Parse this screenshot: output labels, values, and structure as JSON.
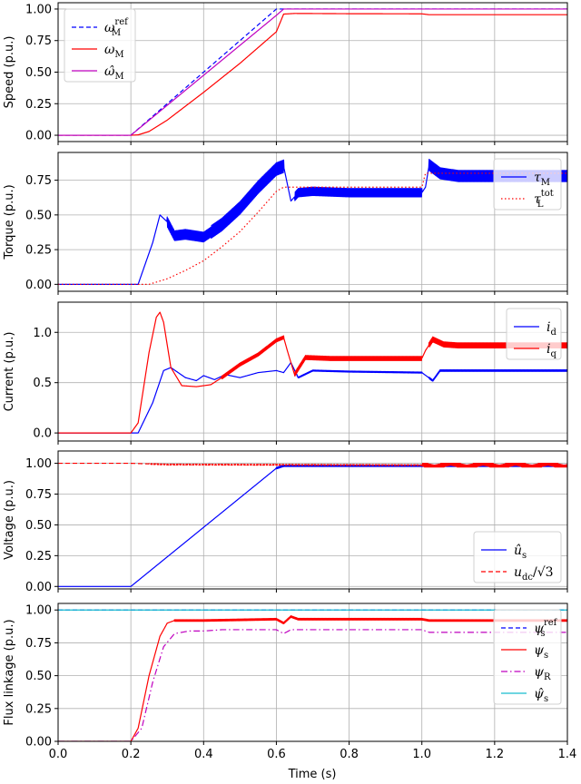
{
  "chart_data": [
    {
      "type": "line",
      "ylabel": "Speed (p.u.)",
      "xlim": [
        0,
        1.4
      ],
      "ylim": [
        -0.05,
        1.05
      ],
      "yticks": [
        "0.00",
        "0.25",
        "0.50",
        "0.75",
        "1.00"
      ],
      "ytick_values": [
        0,
        0.25,
        0.5,
        0.75,
        1.0
      ],
      "grid": true,
      "legend_position": "upper-left",
      "series": [
        {
          "name": "ω_M^ref",
          "color": "#0000ff",
          "dash": "dashed",
          "x": [
            0,
            0.2,
            0.6,
            1.4
          ],
          "y": [
            0,
            0,
            1.0,
            1.0
          ]
        },
        {
          "name": "ω_M",
          "color": "#ff0000",
          "dash": "solid",
          "x": [
            0,
            0.2,
            0.22,
            0.25,
            0.3,
            0.4,
            0.5,
            0.6,
            0.62,
            0.65,
            0.8,
            1.0,
            1.02,
            1.4
          ],
          "y": [
            0,
            0,
            0.003,
            0.03,
            0.12,
            0.34,
            0.57,
            0.82,
            0.96,
            0.965,
            0.963,
            0.962,
            0.955,
            0.955
          ]
        },
        {
          "name": "ω̂_M",
          "color": "#bf00bf",
          "dash": "solid",
          "x": [
            0,
            0.2,
            0.6,
            0.62,
            1.4
          ],
          "y": [
            0,
            0,
            0.95,
            1.0,
            1.0
          ]
        }
      ]
    },
    {
      "type": "line",
      "ylabel": "Torque (p.u.)",
      "xlim": [
        0,
        1.4
      ],
      "ylim": [
        -0.05,
        0.95
      ],
      "yticks": [
        "0.00",
        "0.25",
        "0.50",
        "0.75"
      ],
      "ytick_values": [
        0,
        0.25,
        0.5,
        0.75
      ],
      "grid": true,
      "legend_position": "upper-right",
      "series": [
        {
          "name": "τ_M",
          "color": "#0000ff",
          "dash": "solid",
          "ripple": [
            [
              0.3,
              0.42,
              0.07
            ],
            [
              0.42,
              0.62,
              0.09
            ],
            [
              0.65,
              1.0,
              0.06
            ],
            [
              1.02,
              1.4,
              0.08
            ]
          ],
          "x": [
            0,
            0.22,
            0.26,
            0.28,
            0.3,
            0.32,
            0.35,
            0.4,
            0.45,
            0.5,
            0.55,
            0.6,
            0.62,
            0.64,
            0.66,
            0.7,
            0.8,
            1.0,
            1.01,
            1.02,
            1.05,
            1.1,
            1.4
          ],
          "y": [
            0,
            0,
            0.3,
            0.5,
            0.45,
            0.35,
            0.36,
            0.34,
            0.43,
            0.55,
            0.7,
            0.83,
            0.85,
            0.6,
            0.66,
            0.67,
            0.66,
            0.66,
            0.7,
            0.86,
            0.8,
            0.78,
            0.78
          ]
        },
        {
          "name": "τ_L^tot",
          "color": "#ff0000",
          "dash": "dotted",
          "x": [
            0,
            0.25,
            0.3,
            0.35,
            0.4,
            0.45,
            0.5,
            0.55,
            0.6,
            0.62,
            0.65,
            0.8,
            1.0,
            1.01,
            1.4
          ],
          "y": [
            0,
            0,
            0.04,
            0.1,
            0.17,
            0.27,
            0.38,
            0.52,
            0.67,
            0.7,
            0.7,
            0.7,
            0.7,
            0.8,
            0.8
          ]
        }
      ]
    },
    {
      "type": "line",
      "ylabel": "Current (p.u.)",
      "xlim": [
        0,
        1.4
      ],
      "ylim": [
        -0.08,
        1.3
      ],
      "yticks": [
        "0.0",
        "0.5",
        "1.0"
      ],
      "ytick_values": [
        0,
        0.5,
        1.0
      ],
      "grid": true,
      "legend_position": "upper-right",
      "series": [
        {
          "name": "i_d",
          "color": "#0000ff",
          "dash": "solid",
          "ripple": [
            [
              0.65,
              1.0,
              0.01
            ],
            [
              1.02,
              1.4,
              0.015
            ]
          ],
          "x": [
            0,
            0.22,
            0.26,
            0.29,
            0.31,
            0.35,
            0.38,
            0.4,
            0.43,
            0.46,
            0.5,
            0.55,
            0.6,
            0.62,
            0.64,
            0.66,
            0.7,
            0.8,
            1.0,
            1.03,
            1.05,
            1.1,
            1.4
          ],
          "y": [
            0,
            0,
            0.3,
            0.62,
            0.65,
            0.55,
            0.52,
            0.57,
            0.53,
            0.58,
            0.55,
            0.6,
            0.62,
            0.6,
            0.7,
            0.55,
            0.62,
            0.61,
            0.6,
            0.52,
            0.62,
            0.62,
            0.62
          ]
        },
        {
          "name": "i_q",
          "color": "#ff0000",
          "dash": "solid",
          "ripple": [
            [
              0.45,
              0.62,
              0.03
            ],
            [
              0.65,
              1.0,
              0.04
            ],
            [
              1.02,
              1.4,
              0.05
            ]
          ],
          "x": [
            0,
            0.2,
            0.22,
            0.25,
            0.27,
            0.28,
            0.29,
            0.31,
            0.34,
            0.38,
            0.42,
            0.45,
            0.5,
            0.55,
            0.6,
            0.62,
            0.63,
            0.65,
            0.68,
            0.75,
            1.0,
            1.01,
            1.03,
            1.06,
            1.1,
            1.4
          ],
          "y": [
            0,
            0,
            0.1,
            0.8,
            1.15,
            1.2,
            1.1,
            0.65,
            0.47,
            0.46,
            0.48,
            0.55,
            0.68,
            0.78,
            0.92,
            0.95,
            0.82,
            0.58,
            0.75,
            0.74,
            0.74,
            0.82,
            0.93,
            0.88,
            0.87,
            0.87
          ]
        }
      ]
    },
    {
      "type": "line",
      "ylabel": "Voltage (p.u.)",
      "xlim": [
        0,
        1.4
      ],
      "ylim": [
        -0.02,
        1.1
      ],
      "yticks": [
        "0.00",
        "0.25",
        "0.50",
        "0.75",
        "1.00"
      ],
      "ytick_values": [
        0,
        0.25,
        0.5,
        0.75,
        1.0
      ],
      "grid": true,
      "legend_position": "lower-right",
      "series": [
        {
          "name": "û_s",
          "color": "#0000ff",
          "dash": "solid",
          "ripple": [
            [
              0.6,
              1.4,
              0.012
            ]
          ],
          "x": [
            0,
            0.2,
            0.6,
            0.62,
            1.4
          ],
          "y": [
            0,
            0,
            0.96,
            0.98,
            0.98
          ]
        },
        {
          "name": "u_dc/√3",
          "color": "#ff0000",
          "dash": "dashed",
          "ripple": [
            [
              0.25,
              1.0,
              0.006
            ],
            [
              1.0,
              1.4,
              0.03
            ]
          ],
          "x": [
            0,
            0.2,
            0.3,
            1.0,
            1.4
          ],
          "y": [
            1.0,
            1.0,
            0.99,
            0.985,
            0.985
          ]
        }
      ]
    },
    {
      "type": "line",
      "ylabel": "Flux linkage (p.u.)",
      "xlabel": "Time (s)",
      "xlim": [
        0,
        1.4
      ],
      "ylim": [
        0,
        1.05
      ],
      "yticks": [
        "0.00",
        "0.25",
        "0.50",
        "0.75",
        "1.00"
      ],
      "ytick_values": [
        0,
        0.25,
        0.5,
        0.75,
        1.0
      ],
      "xticks": [
        "0.0",
        "0.2",
        "0.4",
        "0.6",
        "0.8",
        "1.0",
        "1.2",
        "1.4"
      ],
      "xtick_values": [
        0,
        0.2,
        0.4,
        0.6,
        0.8,
        1.0,
        1.2,
        1.4
      ],
      "grid": true,
      "legend_position": "upper-right",
      "series": [
        {
          "name": "ψ_s^ref",
          "color": "#0000ff",
          "dash": "dashed",
          "x": [
            0,
            1.4
          ],
          "y": [
            1.0,
            1.0
          ]
        },
        {
          "name": "ψ_s",
          "color": "#ff0000",
          "dash": "solid",
          "ripple": [
            [
              0.32,
              1.4,
              0.012
            ]
          ],
          "x": [
            0,
            0.2,
            0.22,
            0.25,
            0.28,
            0.3,
            0.32,
            0.4,
            0.6,
            0.62,
            0.64,
            0.66,
            1.0,
            1.02,
            1.4
          ],
          "y": [
            0,
            0,
            0.1,
            0.5,
            0.8,
            0.9,
            0.92,
            0.92,
            0.93,
            0.9,
            0.95,
            0.93,
            0.93,
            0.92,
            0.92
          ]
        },
        {
          "name": "ψ_R",
          "color": "#bf00bf",
          "dash": "dashdot",
          "x": [
            0,
            0.2,
            0.23,
            0.26,
            0.29,
            0.32,
            0.36,
            0.4,
            0.45,
            0.6,
            0.62,
            0.64,
            0.66,
            1.0,
            1.02,
            1.4
          ],
          "y": [
            0,
            0,
            0.1,
            0.45,
            0.72,
            0.82,
            0.84,
            0.84,
            0.85,
            0.85,
            0.82,
            0.85,
            0.85,
            0.85,
            0.83,
            0.83
          ]
        },
        {
          "name": "ψ̂_s",
          "color": "#17becf",
          "dash": "solid",
          "x": [
            0,
            1.4
          ],
          "y": [
            1.0,
            1.0
          ]
        }
      ]
    }
  ],
  "legends": [
    [
      {
        "base": "ω",
        "sub": "M",
        "sup": "ref",
        "hat": false
      },
      {
        "base": "ω",
        "sub": "M",
        "sup": "",
        "hat": false
      },
      {
        "base": "ω",
        "sub": "M",
        "sup": "",
        "hat": true
      }
    ],
    [
      {
        "base": "τ",
        "sub": "M",
        "sup": "",
        "hat": false
      },
      {
        "base": "τ",
        "sub": "L",
        "sup": "tot",
        "hat": false
      }
    ],
    [
      {
        "base": "i",
        "sub": "d",
        "sup": "",
        "hat": false
      },
      {
        "base": "i",
        "sub": "q",
        "sup": "",
        "hat": false
      }
    ],
    [
      {
        "base": "u",
        "sub": "s",
        "sup": "",
        "hat": true
      },
      {
        "base": "u",
        "sub": "dc",
        "sup": "",
        "hat": false,
        "suffix": "/√3"
      }
    ],
    [
      {
        "base": "ψ",
        "sub": "s",
        "sup": "ref",
        "hat": false
      },
      {
        "base": "ψ",
        "sub": "s",
        "sup": "",
        "hat": false
      },
      {
        "base": "ψ",
        "sub": "R",
        "sup": "",
        "hat": false
      },
      {
        "base": "ψ",
        "sub": "s",
        "sup": "",
        "hat": true
      }
    ]
  ]
}
